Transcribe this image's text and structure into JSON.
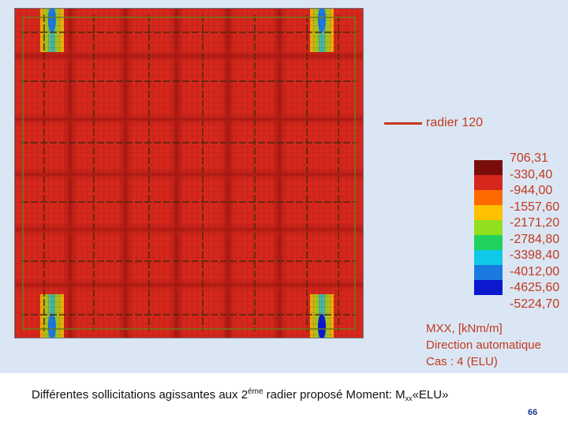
{
  "legend": {
    "title": "radier 120",
    "line_color": "#c23a1c",
    "scale": [
      {
        "value": "706,31",
        "color": "#7a0d0a"
      },
      {
        "value": "-330,40",
        "color": "#d7271c"
      },
      {
        "value": "-944,00",
        "color": "#ff6a00"
      },
      {
        "value": "-1557,60",
        "color": "#ffc000"
      },
      {
        "value": "-2171,20",
        "color": "#90e020"
      },
      {
        "value": "-2784,80",
        "color": "#22d060"
      },
      {
        "value": "-3398,40",
        "color": "#10c8e8"
      },
      {
        "value": "-4012,00",
        "color": "#1a7ae0"
      },
      {
        "value": "-4625,60",
        "color": "#0a18d0"
      },
      {
        "value": "-5224,70",
        "color": "#8a00a0"
      }
    ]
  },
  "info": {
    "quantity": "MXX, [kNm/m]",
    "direction": "Direction automatique",
    "case": "Cas : 4 (ELU)"
  },
  "caption": {
    "before": "Différentes sollicitations agissantes aux 2",
    "sup": "éme",
    "middle": " radier proposé Moment: M",
    "sub": "xx",
    "after": "«ELU»"
  },
  "page_number": "66"
}
